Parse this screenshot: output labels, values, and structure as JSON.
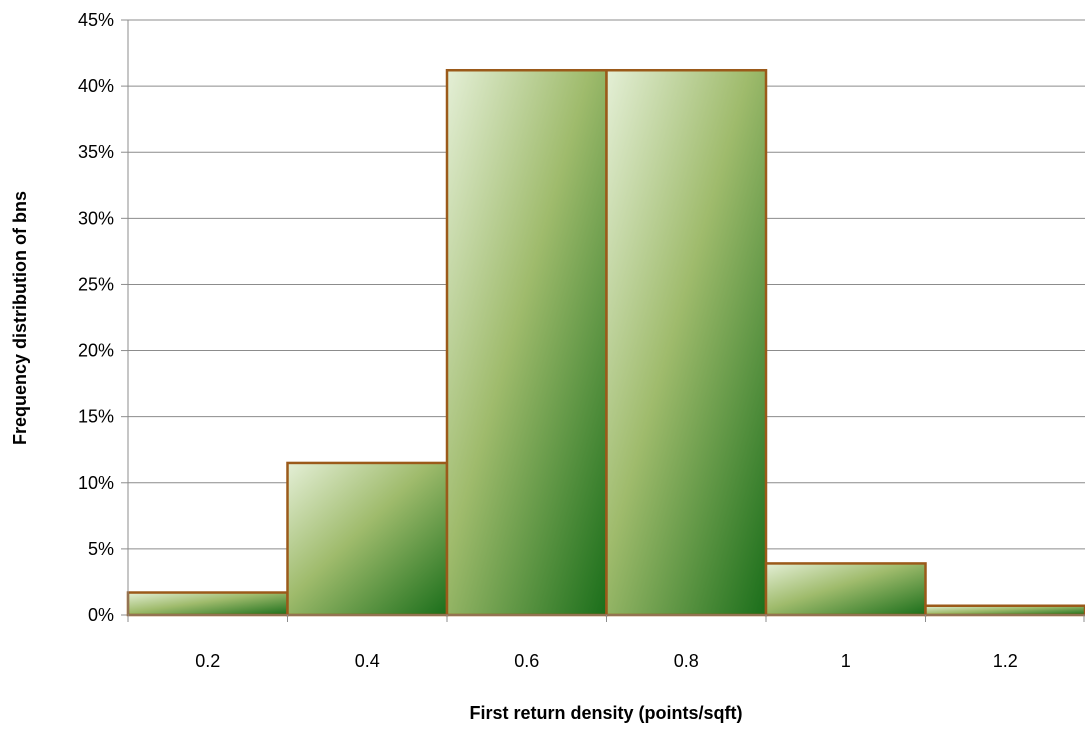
{
  "chart_data": {
    "type": "bar",
    "title": "",
    "xlabel": "First return density (points/sqft)",
    "ylabel": "Frequency distribution of bns",
    "categories": [
      "0.2",
      "0.4",
      "0.6",
      "0.8",
      "1",
      "1.2"
    ],
    "values": [
      1.7,
      11.5,
      41.2,
      41.2,
      3.9,
      0.7
    ],
    "value_unit": "%",
    "ylim": [
      0,
      45
    ],
    "yticks": [
      "0%",
      "5%",
      "10%",
      "15%",
      "20%",
      "25%",
      "30%",
      "35%",
      "40%",
      "45%"
    ],
    "grid": true,
    "legend": "none",
    "colors": {
      "bar_fill_light": "#e4efd6",
      "bar_fill_mid": "#9fbb6c",
      "bar_fill_dark": "#1a6e1a",
      "bar_stroke": "#9b5a1a",
      "gridline": "#8c8c8c"
    }
  }
}
